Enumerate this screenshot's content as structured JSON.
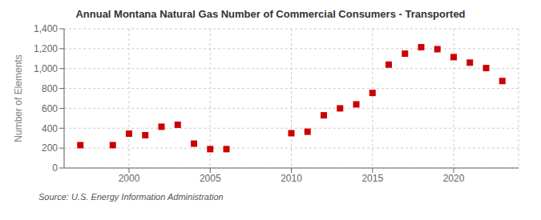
{
  "chart_data": {
    "type": "scatter",
    "title": "Annual Montana Natural Gas Number of Commercial Consumers - Transported",
    "ylabel": "Number of Elements",
    "annotations": [
      "Source: U.S. Energy Information Administration"
    ],
    "x": [
      1997,
      1999,
      2000,
      2001,
      2002,
      2003,
      2004,
      2005,
      2006,
      2010,
      2011,
      2012,
      2013,
      2014,
      2015,
      2016,
      2017,
      2018,
      2019,
      2020,
      2021,
      2022,
      2023
    ],
    "values": [
      230,
      230,
      345,
      330,
      415,
      435,
      245,
      190,
      190,
      350,
      365,
      530,
      600,
      640,
      755,
      1040,
      1150,
      1215,
      1195,
      1115,
      1060,
      1005,
      875
    ],
    "color": "#cc0000",
    "marker": "square",
    "xlim": [
      1996,
      2024
    ],
    "xticks": [
      2000,
      2005,
      2010,
      2015,
      2020
    ],
    "ylim": [
      0,
      1400
    ],
    "yticks": [
      0,
      200,
      400,
      600,
      800,
      {
        "value": 1000,
        "label": "1,000"
      },
      {
        "value": 1200,
        "label": "1,200"
      },
      {
        "value": 1400,
        "label": "1,400"
      }
    ],
    "grid": true
  }
}
